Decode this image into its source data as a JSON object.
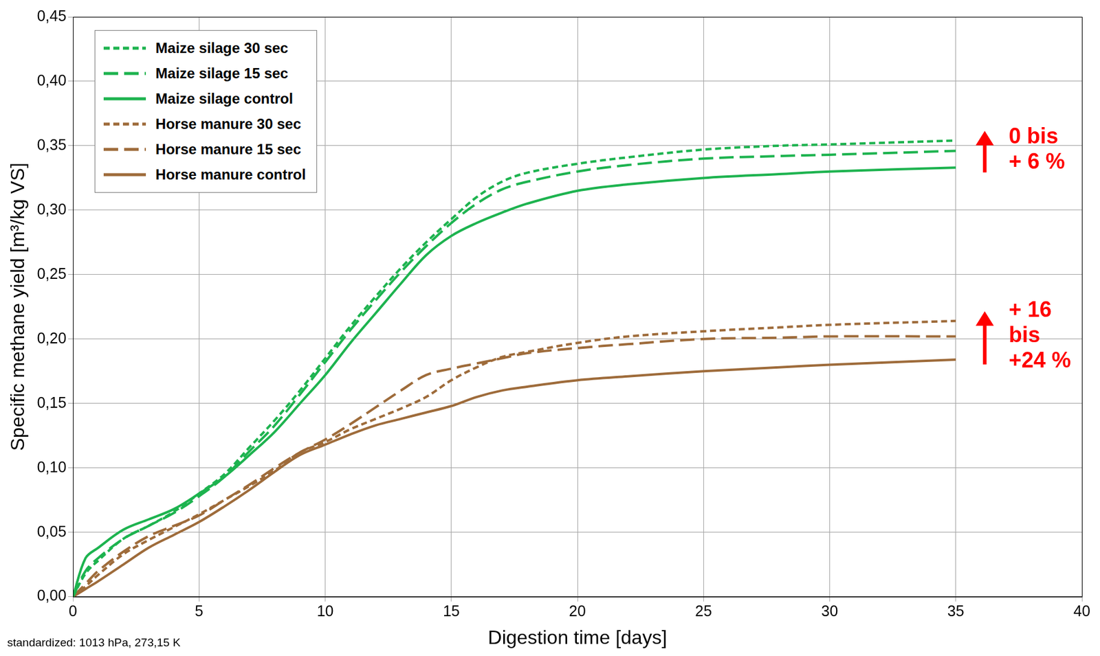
{
  "chart_data": {
    "type": "line",
    "x_label": "Digestion time [days]",
    "y_label": "Specific methane yield [m³/kg VS]",
    "footnote": "standardized: 1013 hPa, 273,15 K",
    "x": [
      0,
      0.5,
      1,
      2,
      3,
      4,
      5,
      6,
      7,
      8,
      9,
      10,
      11,
      12,
      13,
      14,
      15,
      16,
      17,
      18,
      20,
      22,
      25,
      28,
      30,
      35
    ],
    "series": [
      {
        "name": "Maize silage 30 sec",
        "color": "#1db34f",
        "line_style": "dashed",
        "values": [
          0,
          0.018,
          0.028,
          0.045,
          0.055,
          0.066,
          0.08,
          0.095,
          0.116,
          0.137,
          0.16,
          0.185,
          0.21,
          0.233,
          0.255,
          0.275,
          0.293,
          0.31,
          0.322,
          0.329,
          0.336,
          0.341,
          0.347,
          0.35,
          0.351,
          0.354
        ]
      },
      {
        "name": "Maize silage 15 sec",
        "color": "#1db34f",
        "line_style": "longdash",
        "values": [
          0,
          0.02,
          0.03,
          0.045,
          0.055,
          0.065,
          0.078,
          0.093,
          0.113,
          0.133,
          0.157,
          0.182,
          0.207,
          0.23,
          0.252,
          0.272,
          0.29,
          0.305,
          0.316,
          0.322,
          0.33,
          0.335,
          0.34,
          0.342,
          0.343,
          0.346
        ]
      },
      {
        "name": "Maize silage control",
        "color": "#1db34f",
        "line_style": "solid",
        "values": [
          0,
          0.03,
          0.038,
          0.052,
          0.06,
          0.068,
          0.08,
          0.093,
          0.11,
          0.128,
          0.15,
          0.172,
          0.197,
          0.22,
          0.243,
          0.265,
          0.28,
          0.29,
          0.298,
          0.305,
          0.315,
          0.32,
          0.325,
          0.328,
          0.33,
          0.333
        ]
      },
      {
        "name": "Horse manure 30 sec",
        "color": "#9e6b3a",
        "line_style": "dashed",
        "values": [
          0,
          0.008,
          0.017,
          0.033,
          0.044,
          0.054,
          0.064,
          0.075,
          0.086,
          0.098,
          0.112,
          0.12,
          0.13,
          0.138,
          0.146,
          0.155,
          0.168,
          0.178,
          0.186,
          0.19,
          0.197,
          0.202,
          0.206,
          0.209,
          0.211,
          0.214
        ]
      },
      {
        "name": "Horse manure 15 sec",
        "color": "#9e6b3a",
        "line_style": "longdash",
        "values": [
          0,
          0.01,
          0.02,
          0.035,
          0.047,
          0.055,
          0.063,
          0.075,
          0.087,
          0.1,
          0.112,
          0.122,
          0.134,
          0.147,
          0.16,
          0.172,
          0.177,
          0.181,
          0.185,
          0.189,
          0.193,
          0.196,
          0.2,
          0.201,
          0.202,
          0.202
        ]
      },
      {
        "name": "Horse manure control",
        "color": "#9e6b3a",
        "line_style": "solid",
        "values": [
          0,
          0.006,
          0.012,
          0.025,
          0.038,
          0.048,
          0.058,
          0.07,
          0.083,
          0.097,
          0.11,
          0.118,
          0.126,
          0.133,
          0.138,
          0.143,
          0.148,
          0.155,
          0.16,
          0.163,
          0.168,
          0.171,
          0.175,
          0.178,
          0.18,
          0.184
        ]
      }
    ],
    "annotations": [
      {
        "lines": [
          "0 bis",
          "+ 6 %"
        ],
        "color": "#ff0000"
      },
      {
        "lines": [
          "+ 16",
          "bis",
          "+24 %"
        ],
        "color": "#ff0000"
      }
    ],
    "xlim": [
      0,
      40
    ],
    "xticks": [
      0,
      5,
      10,
      15,
      20,
      25,
      30,
      35,
      40
    ],
    "ylim": [
      0,
      0.45
    ],
    "yticks": [
      {
        "value": 0,
        "label": "0,00"
      },
      {
        "value": 0.05,
        "label": "0,05"
      },
      {
        "value": 0.1,
        "label": "0,10"
      },
      {
        "value": 0.15,
        "label": "0,15"
      },
      {
        "value": 0.2,
        "label": "0,20"
      },
      {
        "value": 0.25,
        "label": "0,25"
      },
      {
        "value": 0.3,
        "label": "0,30"
      },
      {
        "value": 0.35,
        "label": "0,35"
      },
      {
        "value": 0.4,
        "label": "0,40"
      },
      {
        "value": 0.45,
        "label": "0,45"
      }
    ],
    "grid": true,
    "legend": "upper left"
  }
}
